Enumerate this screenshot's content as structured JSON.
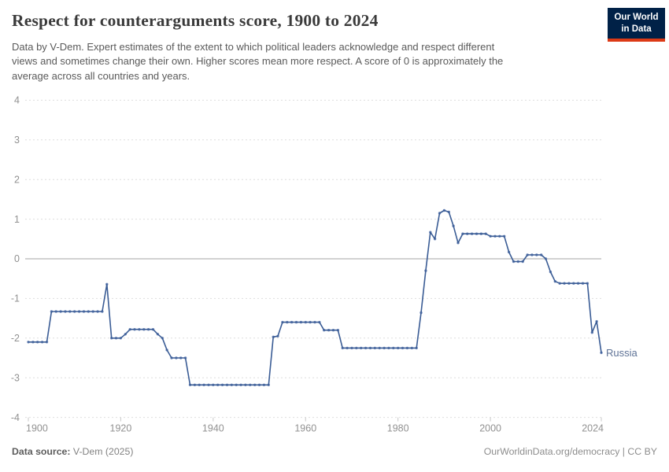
{
  "header": {
    "title": "Respect for counterarguments score, 1900 to 2024",
    "subtitle_lines": [
      "Data by V-Dem. Expert estimates of the extent to which political leaders acknowledge and respect different",
      "views and sometimes change their own. Higher scores mean more respect. A score of 0 is approximately the",
      "average across all countries and years."
    ],
    "logo": {
      "line1": "Our World",
      "line2": "in Data",
      "bg_color": "#002147",
      "accent_color": "#dc3a16"
    }
  },
  "footer": {
    "source_label": "Data source:",
    "source_value": " V-Dem (2025)",
    "credit": "OurWorldinData.org/democracy | CC BY"
  },
  "chart_data": {
    "type": "line",
    "title": "Respect for counterarguments score, 1900 to 2024",
    "xlabel": "",
    "ylabel": "",
    "x_ticks": [
      1900,
      1920,
      1940,
      1960,
      1980,
      2000,
      2024
    ],
    "y_ticks": [
      4,
      3,
      2,
      1,
      0,
      -1,
      -2,
      -3,
      -4
    ],
    "xlim": [
      1900,
      2024
    ],
    "ylim": [
      -4,
      4
    ],
    "grid": "dashed-horizontal",
    "zero_line": true,
    "legend_position": "end-of-line-label",
    "colors": {
      "grid": "#dedede",
      "zero_line": "#a6a6a6",
      "axis_labels": "#919191",
      "tick_marks": "#c9c9c9"
    },
    "series": [
      {
        "name": "Russia",
        "color": "#3a5c95",
        "marker_color": "#6d87b8",
        "label_color": "#5e7296",
        "start_year": 1900,
        "end_year": 2024,
        "values": [
          -2.1,
          -2.1,
          -2.1,
          -2.1,
          -2.1,
          -1.33,
          -1.33,
          -1.33,
          -1.33,
          -1.33,
          -1.33,
          -1.33,
          -1.33,
          -1.33,
          -1.33,
          -1.33,
          -1.33,
          -0.64,
          -2.0,
          -2.0,
          -2.0,
          -1.9,
          -1.78,
          -1.78,
          -1.78,
          -1.78,
          -1.78,
          -1.78,
          -1.9,
          -2.0,
          -2.3,
          -2.5,
          -2.5,
          -2.5,
          -2.5,
          -3.18,
          -3.18,
          -3.18,
          -3.18,
          -3.18,
          -3.18,
          -3.18,
          -3.18,
          -3.18,
          -3.18,
          -3.18,
          -3.18,
          -3.18,
          -3.18,
          -3.18,
          -3.18,
          -3.18,
          -3.18,
          -1.97,
          -1.95,
          -1.6,
          -1.6,
          -1.6,
          -1.6,
          -1.6,
          -1.6,
          -1.6,
          -1.6,
          -1.6,
          -1.8,
          -1.8,
          -1.8,
          -1.8,
          -2.25,
          -2.25,
          -2.25,
          -2.25,
          -2.25,
          -2.25,
          -2.25,
          -2.25,
          -2.25,
          -2.25,
          -2.25,
          -2.25,
          -2.25,
          -2.25,
          -2.25,
          -2.25,
          -2.25,
          -1.36,
          -0.3,
          0.67,
          0.5,
          1.15,
          1.22,
          1.18,
          0.83,
          0.4,
          0.63,
          0.63,
          0.63,
          0.63,
          0.63,
          0.63,
          0.57,
          0.57,
          0.57,
          0.57,
          0.17,
          -0.07,
          -0.07,
          -0.07,
          0.1,
          0.1,
          0.1,
          0.1,
          0.0,
          -0.33,
          -0.57,
          -0.62,
          -0.62,
          -0.62,
          -0.62,
          -0.62,
          -0.62,
          -0.62,
          -1.86,
          -1.58,
          -2.37
        ]
      }
    ]
  }
}
